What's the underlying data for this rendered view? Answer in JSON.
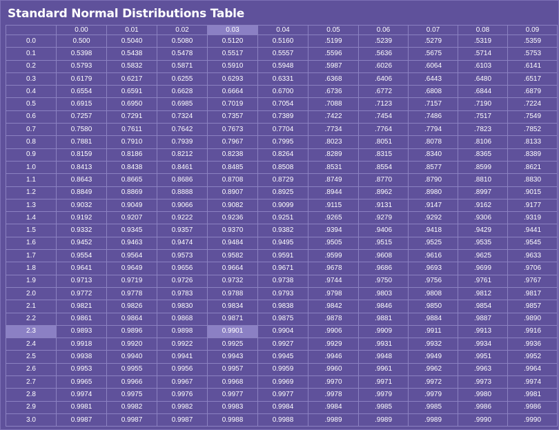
{
  "title": "Standard Normal Distributions Table",
  "colors": {
    "background": "#5f519b",
    "grid": "#8c82c2",
    "highlight": "#8b80c4",
    "text": "#ffffff"
  },
  "highlight": {
    "row_label": "2.3",
    "column_label": "0.03"
  },
  "columns": [
    "0.00",
    "0.01",
    "0.02",
    "0.03",
    "0.04",
    "0.05",
    "0.06",
    "0.07",
    "0.08",
    "0.09"
  ],
  "rows": [
    {
      "z": "0.0",
      "values": [
        "0.500",
        "0.5040",
        "0.5080",
        "0.5120",
        "0.5160",
        ".5199",
        ".5239",
        ".5279",
        ".5319",
        ".5359"
      ]
    },
    {
      "z": "0.1",
      "values": [
        "0.5398",
        "0.5438",
        "0.5478",
        "0.5517",
        "0.5557",
        ".5596",
        ".5636",
        ".5675",
        ".5714",
        ".5753"
      ]
    },
    {
      "z": "0.2",
      "values": [
        "0.5793",
        "0.5832",
        "0.5871",
        "0.5910",
        "0.5948",
        ".5987",
        ".6026",
        ".6064",
        ".6103",
        ".6141"
      ]
    },
    {
      "z": "0.3",
      "values": [
        "0.6179",
        "0.6217",
        "0.6255",
        "0.6293",
        "0.6331",
        ".6368",
        ".6406",
        ".6443",
        ".6480",
        ".6517"
      ]
    },
    {
      "z": "0.4",
      "values": [
        "0.6554",
        "0.6591",
        "0.6628",
        "0.6664",
        "0.6700",
        ".6736",
        ".6772",
        ".6808",
        ".6844",
        ".6879"
      ]
    },
    {
      "z": "0.5",
      "values": [
        "0.6915",
        "0.6950",
        "0.6985",
        "0.7019",
        "0.7054",
        ".7088",
        ".7123",
        ".7157",
        ".7190",
        ".7224"
      ]
    },
    {
      "z": "0.6",
      "values": [
        "0.7257",
        "0.7291",
        "0.7324",
        "0.7357",
        "0.7389",
        ".7422",
        ".7454",
        ".7486",
        ".7517",
        ".7549"
      ]
    },
    {
      "z": "0.7",
      "values": [
        "0.7580",
        "0.7611",
        "0.7642",
        "0.7673",
        "0.7704",
        ".7734",
        ".7764",
        ".7794",
        ".7823",
        ".7852"
      ]
    },
    {
      "z": "0.8",
      "values": [
        "0.7881",
        "0.7910",
        "0.7939",
        "0.7967",
        "0.7995",
        ".8023",
        ".8051",
        ".8078",
        ".8106",
        ".8133"
      ]
    },
    {
      "z": "0.9",
      "values": [
        "0.8159",
        "0.8186",
        "0.8212",
        "0.8238",
        "0.8264",
        ".8289",
        ".8315",
        ".8340",
        ".8365",
        ".8389"
      ]
    },
    {
      "z": "1.0",
      "values": [
        "0.8413",
        "0.8438",
        "0.8461",
        "0.8485",
        "0.8508",
        ".8531",
        ".8554",
        ".8577",
        ".8599",
        ".8621"
      ]
    },
    {
      "z": "1.1",
      "values": [
        "0.8643",
        "0.8665",
        "0.8686",
        "0.8708",
        "0.8729",
        ".8749",
        ".8770",
        ".8790",
        ".8810",
        ".8830"
      ]
    },
    {
      "z": "1.2",
      "values": [
        "0.8849",
        "0.8869",
        "0.8888",
        "0.8907",
        "0.8925",
        ".8944",
        ".8962",
        ".8980",
        ".8997",
        ".9015"
      ]
    },
    {
      "z": "1.3",
      "values": [
        "0.9032",
        "0.9049",
        "0.9066",
        "0.9082",
        "0.9099",
        ".9115",
        ".9131",
        ".9147",
        ".9162",
        ".9177"
      ]
    },
    {
      "z": "1.4",
      "values": [
        "0.9192",
        "0.9207",
        "0.9222",
        "0.9236",
        "0.9251",
        ".9265",
        ".9279",
        ".9292",
        ".9306",
        ".9319"
      ]
    },
    {
      "z": "1.5",
      "values": [
        "0.9332",
        "0.9345",
        "0.9357",
        "0.9370",
        "0.9382",
        ".9394",
        ".9406",
        ".9418",
        ".9429",
        ".9441"
      ]
    },
    {
      "z": "1.6",
      "values": [
        "0.9452",
        "0.9463",
        "0.9474",
        "0.9484",
        "0.9495",
        ".9505",
        ".9515",
        ".9525",
        ".9535",
        ".9545"
      ]
    },
    {
      "z": "1.7",
      "values": [
        "0.9554",
        "0.9564",
        "0.9573",
        "0.9582",
        "0.9591",
        ".9599",
        ".9608",
        ".9616",
        ".9625",
        ".9633"
      ]
    },
    {
      "z": "1.8",
      "values": [
        "0.9641",
        "0.9649",
        "0.9656",
        "0.9664",
        "0.9671",
        ".9678",
        ".9686",
        ".9693",
        ".9699",
        ".9706"
      ]
    },
    {
      "z": "1.9",
      "values": [
        "0.9713",
        "0.9719",
        "0.9726",
        "0.9732",
        "0.9738",
        ".9744",
        ".9750",
        ".9756",
        ".9761",
        ".9767"
      ]
    },
    {
      "z": "2.0",
      "values": [
        "0.9772",
        "0.9778",
        "0.9783",
        "0.9788",
        "0.9793",
        ".9798",
        ".9803",
        ".9808",
        ".9812",
        ".9817"
      ]
    },
    {
      "z": "2.1",
      "values": [
        "0.9821",
        "0.9826",
        "0.9830",
        "0.9834",
        "0.9838",
        ".9842",
        ".9846",
        ".9850",
        ".9854",
        ".9857"
      ]
    },
    {
      "z": "2.2",
      "values": [
        "0.9861",
        "0.9864",
        "0.9868",
        "0.9871",
        "0.9875",
        ".9878",
        ".9881",
        ".9884",
        ".9887",
        ".9890"
      ]
    },
    {
      "z": "2.3",
      "values": [
        "0.9893",
        "0.9896",
        "0.9898",
        "0.9901",
        "0.9904",
        ".9906",
        ".9909",
        ".9911",
        ".9913",
        ".9916"
      ]
    },
    {
      "z": "2.4",
      "values": [
        "0.9918",
        "0.9920",
        "0.9922",
        "0.9925",
        "0.9927",
        ".9929",
        ".9931",
        ".9932",
        ".9934",
        ".9936"
      ]
    },
    {
      "z": "2.5",
      "values": [
        "0.9938",
        "0.9940",
        "0.9941",
        "0.9943",
        "0.9945",
        ".9946",
        ".9948",
        ".9949",
        ".9951",
        ".9952"
      ]
    },
    {
      "z": "2.6",
      "values": [
        "0.9953",
        "0.9955",
        "0.9956",
        "0.9957",
        "0.9959",
        ".9960",
        ".9961",
        ".9962",
        ".9963",
        ".9964"
      ]
    },
    {
      "z": "2.7",
      "values": [
        "0.9965",
        "0.9966",
        "0.9967",
        "0.9968",
        "0.9969",
        ".9970",
        ".9971",
        ".9972",
        ".9973",
        ".9974"
      ]
    },
    {
      "z": "2.8",
      "values": [
        "0.9974",
        "0.9975",
        "0.9976",
        "0.9977",
        "0.9977",
        ".9978",
        ".9979",
        ".9979",
        ".9980",
        ".9981"
      ]
    },
    {
      "z": "2.9",
      "values": [
        "0.9981",
        "0.9982",
        "0.9982",
        "0.9983",
        "0.9984",
        ".9984",
        ".9985",
        ".9985",
        ".9986",
        ".9986"
      ]
    },
    {
      "z": "3.0",
      "values": [
        "0.9987",
        "0.9987",
        "0.9987",
        "0.9988",
        "0.9988",
        ".9989",
        ".9989",
        ".9989",
        ".9990",
        ".9990"
      ]
    }
  ]
}
